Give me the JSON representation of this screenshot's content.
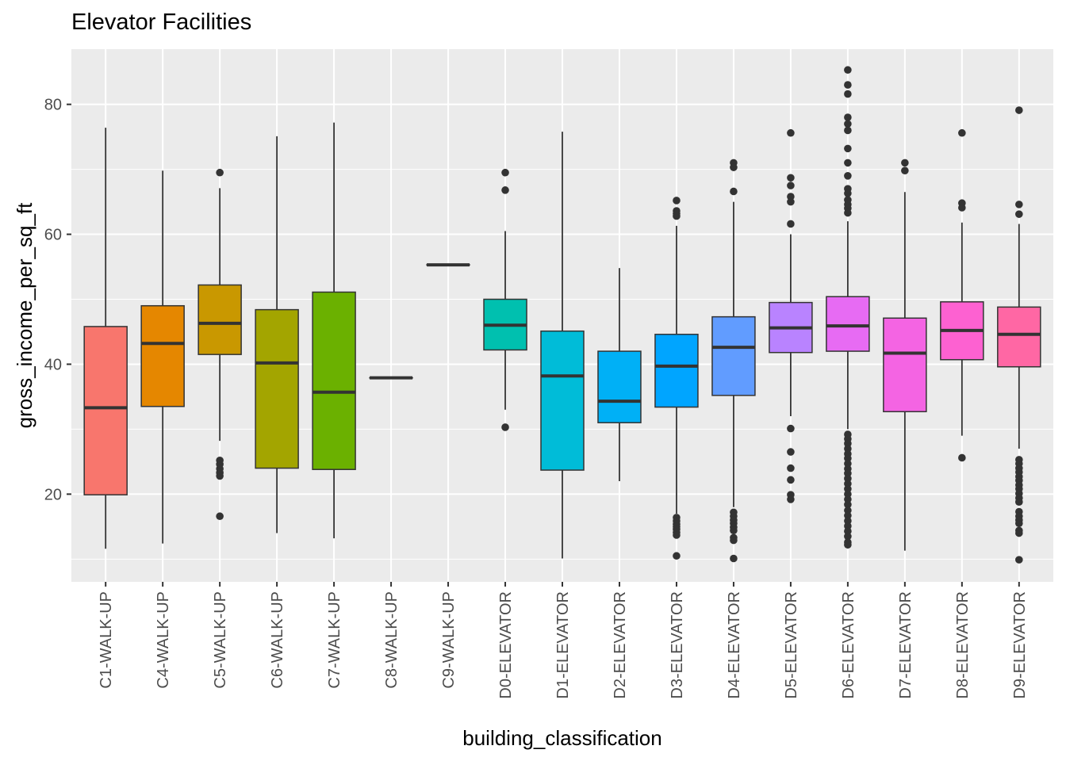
{
  "chart_data": {
    "type": "boxplot",
    "title": "Elevator Facilities",
    "xlabel": "building_classification",
    "ylabel": "gross_income_per_sq_ft",
    "ylim": [
      6.5,
      88.5
    ],
    "yticks": [
      20,
      40,
      60,
      80
    ],
    "grid": true,
    "legend": "none",
    "categories": [
      "C1-WALK-UP",
      "C4-WALK-UP",
      "C5-WALK-UP",
      "C6-WALK-UP",
      "C7-WALK-UP",
      "C8-WALK-UP",
      "C9-WALK-UP",
      "D0-ELEVATOR",
      "D1-ELEVATOR",
      "D2-ELEVATOR",
      "D3-ELEVATOR",
      "D4-ELEVATOR",
      "D5-ELEVATOR",
      "D6-ELEVATOR",
      "D7-ELEVATOR",
      "D8-ELEVATOR",
      "D9-ELEVATOR"
    ],
    "colors": [
      "#F8766D",
      "#E58700",
      "#C99800",
      "#A3A500",
      "#6BB100",
      "#00BA38",
      "#00BF7D",
      "#00C0AF",
      "#00BCD8",
      "#00B0F6",
      "#00A5FF",
      "#619CFF",
      "#B983FF",
      "#E76BF3",
      "#F464E3",
      "#FD61D1",
      "#FF67A4"
    ],
    "boxes": [
      {
        "whisker_low": 11.6,
        "q1": 19.9,
        "median": 33.3,
        "q3": 45.8,
        "whisker_high": 76.4,
        "outliers": []
      },
      {
        "whisker_low": 12.4,
        "q1": 33.5,
        "median": 43.2,
        "q3": 49.0,
        "whisker_high": 69.8,
        "outliers": []
      },
      {
        "whisker_low": 28.2,
        "q1": 41.5,
        "median": 46.3,
        "q3": 52.2,
        "whisker_high": 67.1,
        "outliers": [
          69.5,
          25.2,
          24.6,
          23.9,
          23.3,
          22.8,
          16.6
        ]
      },
      {
        "whisker_low": 14.0,
        "q1": 24.0,
        "median": 40.2,
        "q3": 48.4,
        "whisker_high": 75.1,
        "outliers": []
      },
      {
        "whisker_low": 13.2,
        "q1": 23.8,
        "median": 35.7,
        "q3": 51.1,
        "whisker_high": 77.2,
        "outliers": []
      },
      {
        "whisker_low": 37.9,
        "q1": 37.9,
        "median": 37.9,
        "q3": 37.9,
        "whisker_high": 37.9,
        "outliers": []
      },
      {
        "whisker_low": 55.3,
        "q1": 55.3,
        "median": 55.3,
        "q3": 55.3,
        "whisker_high": 55.3,
        "outliers": []
      },
      {
        "whisker_low": 33.0,
        "q1": 42.2,
        "median": 46.0,
        "q3": 50.0,
        "whisker_high": 60.5,
        "outliers": [
          69.5,
          66.8,
          30.3
        ]
      },
      {
        "whisker_low": 10.1,
        "q1": 23.7,
        "median": 38.2,
        "q3": 45.1,
        "whisker_high": 75.8,
        "outliers": []
      },
      {
        "whisker_low": 22.0,
        "q1": 31.0,
        "median": 34.3,
        "q3": 42.0,
        "whisker_high": 54.8,
        "outliers": []
      },
      {
        "whisker_low": 17.0,
        "q1": 33.4,
        "median": 39.7,
        "q3": 44.6,
        "whisker_high": 61.3,
        "outliers": [
          65.2,
          63.6,
          63.2,
          62.8,
          16.4,
          15.9,
          15.4,
          15.0,
          14.6,
          14.1,
          13.7,
          10.5
        ]
      },
      {
        "whisker_low": 18.0,
        "q1": 35.2,
        "median": 42.6,
        "q3": 47.3,
        "whisker_high": 65.0,
        "outliers": [
          71.0,
          70.3,
          66.6,
          17.2,
          16.6,
          16.0,
          15.5,
          14.9,
          14.4,
          13.3,
          12.9,
          10.1
        ]
      },
      {
        "whisker_low": 32.0,
        "q1": 41.8,
        "median": 45.6,
        "q3": 49.5,
        "whisker_high": 60.0,
        "outliers": [
          75.6,
          68.7,
          67.5,
          65.8,
          65.0,
          61.6,
          30.1,
          26.5,
          24.0,
          22.2,
          19.9,
          19.2
        ]
      },
      {
        "whisker_low": 30.0,
        "q1": 42.0,
        "median": 45.9,
        "q3": 50.4,
        "whisker_high": 62.0,
        "outliers": [
          85.3,
          83.0,
          81.6,
          78.0,
          77.0,
          76.0,
          73.2,
          71.0,
          69.0,
          67.0,
          66.3,
          65.3,
          64.6,
          64.0,
          63.3,
          29.2,
          28.5,
          27.8,
          27.0,
          26.2,
          25.5,
          24.7,
          23.9,
          23.2,
          22.4,
          21.6,
          20.8,
          20.0,
          19.2,
          18.4,
          17.5,
          16.7,
          15.9,
          15.1,
          14.3,
          13.5,
          12.6,
          12.2
        ]
      },
      {
        "whisker_low": 11.3,
        "q1": 32.7,
        "median": 41.7,
        "q3": 47.1,
        "whisker_high": 66.5,
        "outliers": [
          71.0,
          69.8
        ]
      },
      {
        "whisker_low": 29.0,
        "q1": 40.7,
        "median": 45.2,
        "q3": 49.6,
        "whisker_high": 61.8,
        "outliers": [
          75.6,
          64.8,
          64.1,
          25.6
        ]
      },
      {
        "whisker_low": 27.0,
        "q1": 39.6,
        "median": 44.6,
        "q3": 48.8,
        "whisker_high": 61.6,
        "outliers": [
          79.1,
          64.6,
          63.1,
          25.3,
          24.7,
          24.0,
          23.4,
          22.7,
          22.1,
          21.4,
          20.8,
          20.1,
          19.4,
          18.8,
          17.3,
          16.6,
          16.0,
          15.5,
          14.4,
          14.0,
          9.9
        ]
      }
    ]
  }
}
